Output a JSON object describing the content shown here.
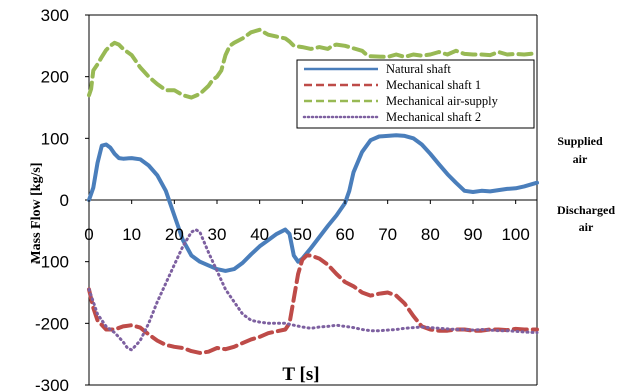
{
  "chart_data": {
    "type": "line",
    "xlabel": "T [s]",
    "ylabel": "Mass Flow [kg/s]",
    "xlim": [
      0,
      105
    ],
    "ylim": [
      -300,
      300
    ],
    "x_ticks": [
      "0",
      "10",
      "20",
      "30",
      "40",
      "50",
      "60",
      "70",
      "80",
      "90",
      "100"
    ],
    "y_ticks": [
      "300",
      "200",
      "100",
      "0",
      "-100",
      "-200",
      "-300"
    ],
    "grid": false,
    "legend_position": "top-right",
    "annotations": {
      "supplied": [
        "Supplied",
        "air"
      ],
      "discharged": [
        "Discharged",
        "air"
      ]
    },
    "series": [
      {
        "name": "Natural shaft",
        "color": "#4a7ebb",
        "style": "solid",
        "points": [
          [
            0,
            0
          ],
          [
            1,
            20
          ],
          [
            2,
            60
          ],
          [
            3,
            88
          ],
          [
            4,
            90
          ],
          [
            5,
            85
          ],
          [
            6,
            75
          ],
          [
            7,
            68
          ],
          [
            8,
            67
          ],
          [
            10,
            68
          ],
          [
            12,
            66
          ],
          [
            14,
            56
          ],
          [
            16,
            40
          ],
          [
            18,
            15
          ],
          [
            20,
            -25
          ],
          [
            22,
            -65
          ],
          [
            24,
            -90
          ],
          [
            26,
            -100
          ],
          [
            28,
            -106
          ],
          [
            30,
            -112
          ],
          [
            32,
            -115
          ],
          [
            34,
            -112
          ],
          [
            36,
            -102
          ],
          [
            38,
            -88
          ],
          [
            40,
            -75
          ],
          [
            42,
            -65
          ],
          [
            44,
            -55
          ],
          [
            46,
            -48
          ],
          [
            47,
            -55
          ],
          [
            48,
            -90
          ],
          [
            49,
            -100
          ],
          [
            50,
            -95
          ],
          [
            52,
            -78
          ],
          [
            54,
            -60
          ],
          [
            56,
            -42
          ],
          [
            58,
            -25
          ],
          [
            60,
            -5
          ],
          [
            61,
            15
          ],
          [
            62,
            45
          ],
          [
            64,
            78
          ],
          [
            66,
            97
          ],
          [
            68,
            103
          ],
          [
            70,
            104
          ],
          [
            72,
            105
          ],
          [
            74,
            104
          ],
          [
            76,
            100
          ],
          [
            78,
            90
          ],
          [
            80,
            75
          ],
          [
            82,
            58
          ],
          [
            84,
            42
          ],
          [
            86,
            28
          ],
          [
            88,
            15
          ],
          [
            90,
            13
          ],
          [
            92,
            15
          ],
          [
            94,
            14
          ],
          [
            96,
            16
          ],
          [
            98,
            18
          ],
          [
            100,
            19
          ],
          [
            102,
            22
          ],
          [
            105,
            28
          ]
        ]
      },
      {
        "name": "Mechanical shaft 1",
        "color": "#be4b48",
        "style": "dashed",
        "points": [
          [
            0,
            -145
          ],
          [
            1,
            -175
          ],
          [
            2,
            -195
          ],
          [
            4,
            -210
          ],
          [
            6,
            -210
          ],
          [
            8,
            -205
          ],
          [
            10,
            -203
          ],
          [
            12,
            -207
          ],
          [
            14,
            -218
          ],
          [
            16,
            -228
          ],
          [
            18,
            -235
          ],
          [
            20,
            -238
          ],
          [
            22,
            -240
          ],
          [
            24,
            -245
          ],
          [
            26,
            -248
          ],
          [
            28,
            -246
          ],
          [
            30,
            -240
          ],
          [
            32,
            -242
          ],
          [
            34,
            -238
          ],
          [
            36,
            -232
          ],
          [
            38,
            -226
          ],
          [
            40,
            -222
          ],
          [
            42,
            -216
          ],
          [
            44,
            -213
          ],
          [
            46,
            -210
          ],
          [
            47,
            -200
          ],
          [
            48,
            -160
          ],
          [
            49,
            -120
          ],
          [
            50,
            -97
          ],
          [
            51,
            -90
          ],
          [
            52,
            -90
          ],
          [
            54,
            -95
          ],
          [
            56,
            -105
          ],
          [
            58,
            -120
          ],
          [
            60,
            -133
          ],
          [
            62,
            -140
          ],
          [
            64,
            -150
          ],
          [
            66,
            -155
          ],
          [
            68,
            -152
          ],
          [
            70,
            -150
          ],
          [
            72,
            -155
          ],
          [
            74,
            -168
          ],
          [
            76,
            -188
          ],
          [
            78,
            -205
          ],
          [
            80,
            -210
          ],
          [
            82,
            -212
          ],
          [
            84,
            -212
          ],
          [
            86,
            -210
          ],
          [
            88,
            -210
          ],
          [
            90,
            -212
          ],
          [
            92,
            -212
          ],
          [
            94,
            -210
          ],
          [
            96,
            -210
          ],
          [
            98,
            -211
          ],
          [
            100,
            -209
          ],
          [
            102,
            -210
          ],
          [
            105,
            -210
          ]
        ]
      },
      {
        "name": "Mechanical air-supply",
        "color": "#98b954",
        "style": "dashed",
        "points": [
          [
            0,
            170
          ],
          [
            0.5,
            180
          ],
          [
            1,
            210
          ],
          [
            2,
            220
          ],
          [
            3,
            232
          ],
          [
            4,
            243
          ],
          [
            5,
            250
          ],
          [
            6,
            255
          ],
          [
            7,
            252
          ],
          [
            8,
            245
          ],
          [
            10,
            235
          ],
          [
            12,
            215
          ],
          [
            14,
            200
          ],
          [
            16,
            188
          ],
          [
            18,
            178
          ],
          [
            20,
            178
          ],
          [
            22,
            170
          ],
          [
            24,
            166
          ],
          [
            26,
            172
          ],
          [
            28,
            185
          ],
          [
            29,
            195
          ],
          [
            30,
            200
          ],
          [
            31,
            210
          ],
          [
            32,
            235
          ],
          [
            33,
            250
          ],
          [
            34,
            255
          ],
          [
            36,
            262
          ],
          [
            38,
            272
          ],
          [
            40,
            276
          ],
          [
            42,
            268
          ],
          [
            44,
            265
          ],
          [
            46,
            262
          ],
          [
            47,
            257
          ],
          [
            48,
            250
          ],
          [
            50,
            248
          ],
          [
            52,
            245
          ],
          [
            54,
            248
          ],
          [
            56,
            245
          ],
          [
            57,
            250
          ],
          [
            58,
            252
          ],
          [
            60,
            250
          ],
          [
            62,
            246
          ],
          [
            64,
            242
          ],
          [
            65,
            236
          ],
          [
            66,
            233
          ],
          [
            70,
            232
          ],
          [
            72,
            236
          ],
          [
            74,
            232
          ],
          [
            76,
            236
          ],
          [
            78,
            234
          ],
          [
            80,
            236
          ],
          [
            82,
            240
          ],
          [
            84,
            236
          ],
          [
            86,
            242
          ],
          [
            88,
            237
          ],
          [
            90,
            236
          ],
          [
            92,
            236
          ],
          [
            94,
            235
          ],
          [
            96,
            240
          ],
          [
            98,
            236
          ],
          [
            100,
            237
          ],
          [
            102,
            236
          ],
          [
            105,
            238
          ]
        ]
      },
      {
        "name": "Mechanical shaft 2",
        "color": "#7d60a0",
        "style": "dotted",
        "points": [
          [
            0,
            -145
          ],
          [
            1,
            -165
          ],
          [
            2,
            -185
          ],
          [
            4,
            -205
          ],
          [
            6,
            -215
          ],
          [
            8,
            -230
          ],
          [
            9,
            -240
          ],
          [
            10,
            -243
          ],
          [
            12,
            -228
          ],
          [
            14,
            -200
          ],
          [
            16,
            -165
          ],
          [
            18,
            -135
          ],
          [
            20,
            -105
          ],
          [
            22,
            -75
          ],
          [
            24,
            -52
          ],
          [
            25,
            -48
          ],
          [
            26,
            -52
          ],
          [
            28,
            -85
          ],
          [
            30,
            -115
          ],
          [
            32,
            -145
          ],
          [
            34,
            -165
          ],
          [
            36,
            -185
          ],
          [
            38,
            -195
          ],
          [
            40,
            -198
          ],
          [
            42,
            -200
          ],
          [
            44,
            -200
          ],
          [
            46,
            -200
          ],
          [
            48,
            -203
          ],
          [
            50,
            -206
          ],
          [
            52,
            -208
          ],
          [
            54,
            -206
          ],
          [
            56,
            -205
          ],
          [
            58,
            -203
          ],
          [
            60,
            -205
          ],
          [
            62,
            -207
          ],
          [
            64,
            -210
          ],
          [
            66,
            -212
          ],
          [
            68,
            -212
          ],
          [
            70,
            -211
          ],
          [
            72,
            -210
          ],
          [
            74,
            -208
          ],
          [
            76,
            -207
          ],
          [
            78,
            -206
          ],
          [
            80,
            -207
          ],
          [
            82,
            -208
          ],
          [
            84,
            -209
          ],
          [
            86,
            -210
          ],
          [
            88,
            -210
          ],
          [
            90,
            -211
          ],
          [
            92,
            -210
          ],
          [
            94,
            -211
          ],
          [
            96,
            -212
          ],
          [
            98,
            -212
          ],
          [
            100,
            -213
          ],
          [
            102,
            -214
          ],
          [
            105,
            -215
          ]
        ]
      }
    ]
  }
}
